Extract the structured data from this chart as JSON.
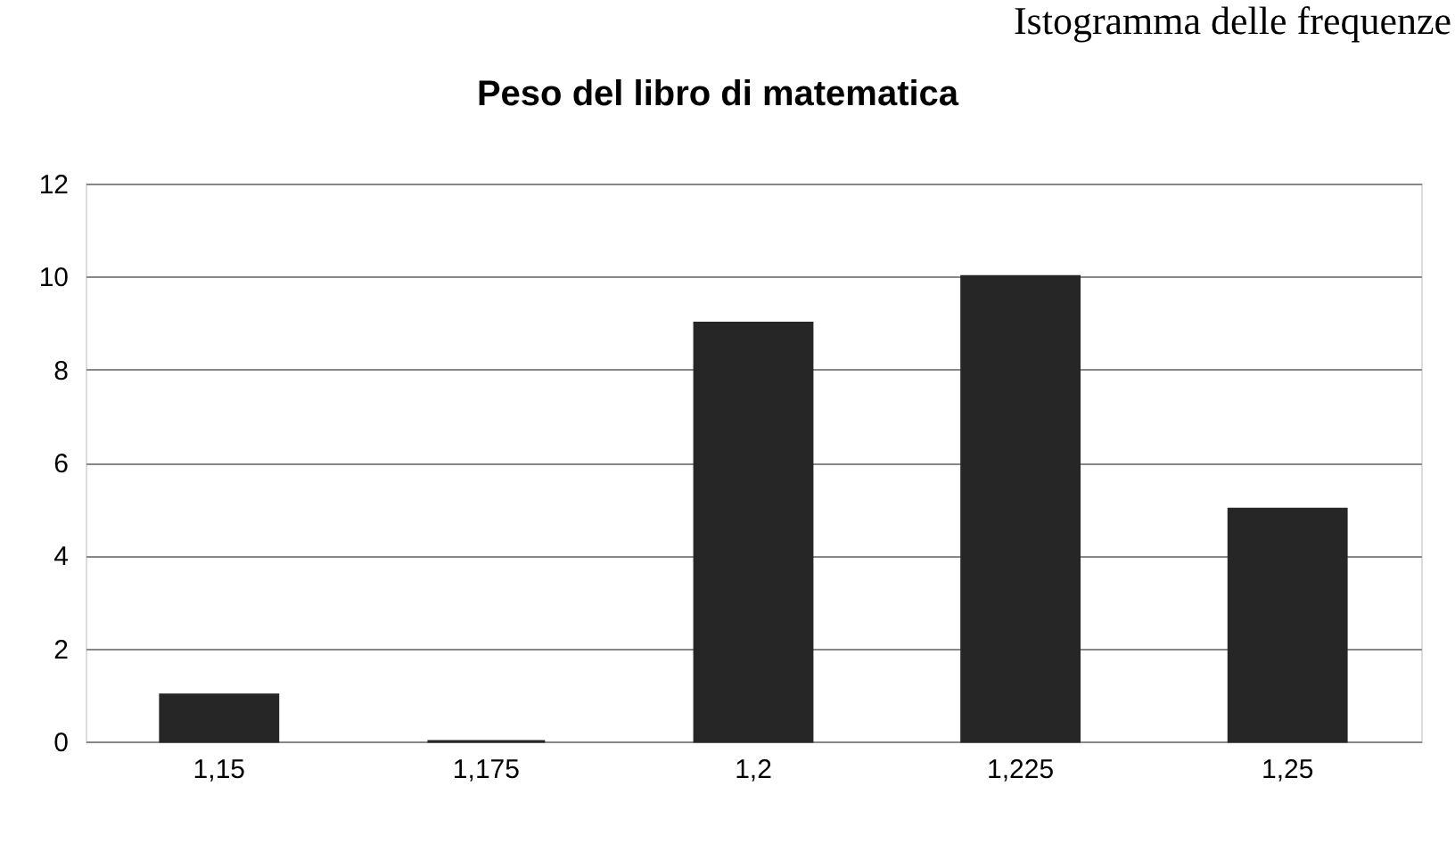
{
  "chart_data": {
    "type": "bar",
    "title": "Peso del libro di matematica",
    "annotations": [
      "Istogramma delle frequenze"
    ],
    "categories": [
      "1,15",
      "1,175",
      "1,2",
      "1,225",
      "1,25"
    ],
    "values": [
      1,
      0,
      9,
      10,
      5
    ],
    "color": "#262626",
    "ylim": [
      0,
      12
    ],
    "yticks": [
      0,
      2,
      4,
      6,
      8,
      10,
      12
    ],
    "grid": "y"
  }
}
